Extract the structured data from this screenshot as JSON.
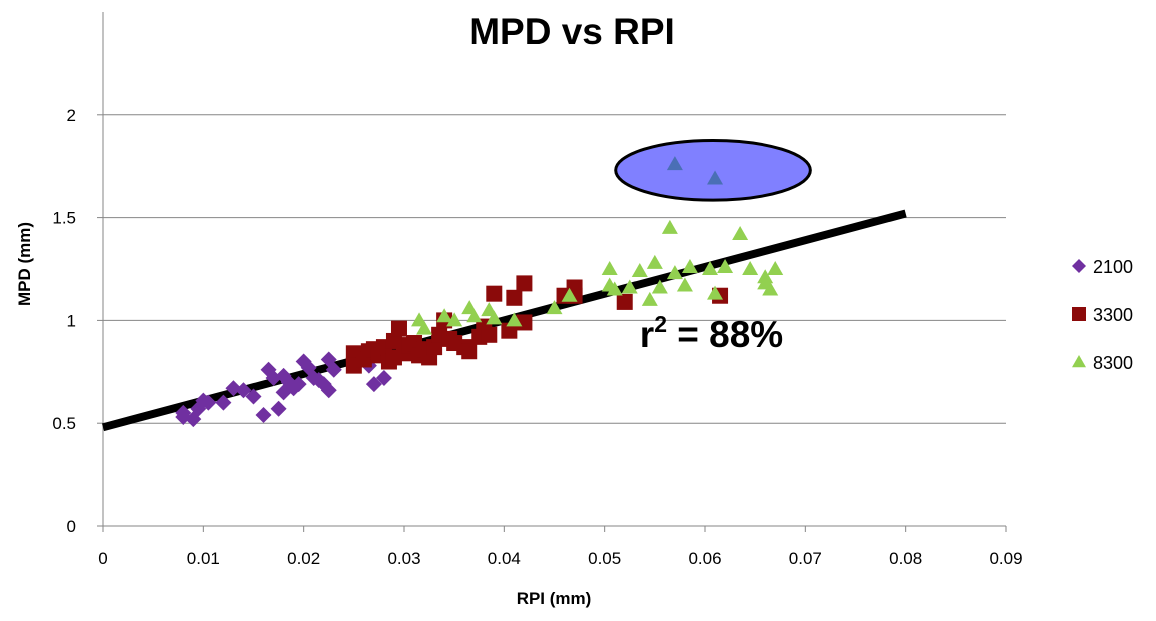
{
  "chart_data": {
    "type": "scatter",
    "title": "MPD vs RPI",
    "xlabel": "RPI (mm)",
    "ylabel": "MPD (mm)",
    "xlim": [
      0,
      0.09
    ],
    "ylim": [
      0,
      2.5
    ],
    "x_ticks": [
      "0",
      "0.01",
      "0.02",
      "0.03",
      "0.04",
      "0.05",
      "0.06",
      "0.07",
      "0.08",
      "0.09"
    ],
    "y_ticks": [
      "0",
      "0.5",
      "1",
      "1.5",
      "2"
    ],
    "grid": "horizontal",
    "legend_position": "right",
    "series": [
      {
        "name": "2100",
        "marker": "diamond",
        "color": "#7030A0",
        "points": [
          [
            0.008,
            0.53
          ],
          [
            0.008,
            0.55
          ],
          [
            0.009,
            0.52
          ],
          [
            0.0095,
            0.57
          ],
          [
            0.01,
            0.61
          ],
          [
            0.0105,
            0.6
          ],
          [
            0.012,
            0.6
          ],
          [
            0.013,
            0.67
          ],
          [
            0.014,
            0.66
          ],
          [
            0.015,
            0.63
          ],
          [
            0.016,
            0.54
          ],
          [
            0.0165,
            0.76
          ],
          [
            0.017,
            0.72
          ],
          [
            0.0175,
            0.57
          ],
          [
            0.018,
            0.65
          ],
          [
            0.018,
            0.73
          ],
          [
            0.0185,
            0.7
          ],
          [
            0.019,
            0.67
          ],
          [
            0.0195,
            0.69
          ],
          [
            0.02,
            0.8
          ],
          [
            0.0205,
            0.77
          ],
          [
            0.021,
            0.72
          ],
          [
            0.0215,
            0.71
          ],
          [
            0.022,
            0.69
          ],
          [
            0.0225,
            0.66
          ],
          [
            0.0225,
            0.81
          ],
          [
            0.023,
            0.76
          ],
          [
            0.0265,
            0.78
          ],
          [
            0.027,
            0.69
          ],
          [
            0.028,
            0.72
          ]
        ]
      },
      {
        "name": "3300",
        "marker": "square",
        "color": "#8B0A0A",
        "points": [
          [
            0.025,
            0.84
          ],
          [
            0.025,
            0.78
          ],
          [
            0.026,
            0.81
          ],
          [
            0.0265,
            0.85
          ],
          [
            0.027,
            0.86
          ],
          [
            0.0275,
            0.83
          ],
          [
            0.028,
            0.87
          ],
          [
            0.0285,
            0.8
          ],
          [
            0.029,
            0.82
          ],
          [
            0.029,
            0.9
          ],
          [
            0.0295,
            0.96
          ],
          [
            0.03,
            0.84
          ],
          [
            0.0305,
            0.88
          ],
          [
            0.031,
            0.89
          ],
          [
            0.0315,
            0.83
          ],
          [
            0.032,
            0.86
          ],
          [
            0.0325,
            0.82
          ],
          [
            0.033,
            0.87
          ],
          [
            0.0335,
            0.93
          ],
          [
            0.034,
            1.0
          ],
          [
            0.0345,
            0.91
          ],
          [
            0.035,
            0.89
          ],
          [
            0.036,
            0.87
          ],
          [
            0.0365,
            0.85
          ],
          [
            0.0375,
            0.92
          ],
          [
            0.038,
            0.97
          ],
          [
            0.0385,
            0.93
          ],
          [
            0.039,
            1.13
          ],
          [
            0.0405,
            0.95
          ],
          [
            0.041,
            1.11
          ],
          [
            0.042,
            1.18
          ],
          [
            0.042,
            0.99
          ],
          [
            0.046,
            1.12
          ],
          [
            0.047,
            1.16
          ],
          [
            0.047,
            1.12
          ],
          [
            0.052,
            1.09
          ],
          [
            0.0615,
            1.12
          ]
        ]
      },
      {
        "name": "8300",
        "marker": "triangle",
        "color": "#92D050",
        "points": [
          [
            0.0315,
            1.0
          ],
          [
            0.032,
            0.96
          ],
          [
            0.034,
            1.02
          ],
          [
            0.035,
            1.0
          ],
          [
            0.0365,
            1.06
          ],
          [
            0.037,
            1.02
          ],
          [
            0.0385,
            1.05
          ],
          [
            0.039,
            1.01
          ],
          [
            0.041,
            1.0
          ],
          [
            0.045,
            1.06
          ],
          [
            0.0465,
            1.12
          ],
          [
            0.0505,
            1.25
          ],
          [
            0.0505,
            1.17
          ],
          [
            0.051,
            1.15
          ],
          [
            0.0525,
            1.16
          ],
          [
            0.0535,
            1.24
          ],
          [
            0.0545,
            1.1
          ],
          [
            0.055,
            1.28
          ],
          [
            0.0555,
            1.16
          ],
          [
            0.0565,
            1.45
          ],
          [
            0.057,
            1.23
          ],
          [
            0.058,
            1.17
          ],
          [
            0.0585,
            1.26
          ],
          [
            0.0605,
            1.25
          ],
          [
            0.061,
            1.13
          ],
          [
            0.062,
            1.26
          ],
          [
            0.0635,
            1.42
          ],
          [
            0.0645,
            1.25
          ],
          [
            0.066,
            1.21
          ],
          [
            0.066,
            1.18
          ],
          [
            0.0665,
            1.15
          ],
          [
            0.067,
            1.25
          ],
          [
            0.057,
            1.76
          ],
          [
            0.061,
            1.69
          ]
        ]
      }
    ],
    "trendline": {
      "x": [
        0,
        0.08
      ],
      "y": [
        0.48,
        1.52
      ],
      "color": "#000000"
    },
    "highlight_ellipse": {
      "cx": 0.0608,
      "cy": 1.73,
      "rx": 0.0097,
      "ry": 0.145,
      "fill": "#8080FF",
      "stroke": "#000000"
    },
    "highlighted_point_color": "#4A6FB5",
    "annotation": {
      "base": "r",
      "sup": "2",
      "rest": " = 88%",
      "x": 0.0535,
      "y": 0.87
    }
  }
}
